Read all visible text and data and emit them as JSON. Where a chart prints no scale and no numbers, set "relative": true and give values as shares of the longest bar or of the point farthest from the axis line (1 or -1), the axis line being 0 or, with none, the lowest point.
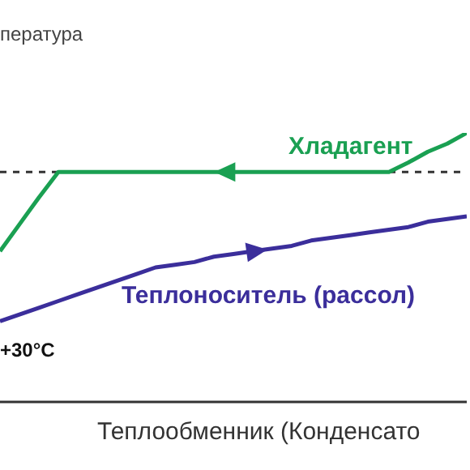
{
  "chart_data": {
    "type": "line",
    "relative": true,
    "ylabel": "пература",
    "xlabel": "Теплообменник (Конденсато",
    "legend": false,
    "marker": "none",
    "line_style": "solid",
    "categories": [
      null,
      null,
      null,
      null,
      null,
      null,
      null,
      null,
      null,
      null,
      null,
      null,
      null,
      null,
      null,
      null,
      null,
      null,
      null,
      null,
      null,
      null,
      null,
      null,
      null
    ],
    "series": [
      {
        "name": "Хладагент",
        "color": "#1aa052",
        "values": [
          0.56,
          0.66,
          0.76,
          0.855,
          0.855,
          0.855,
          0.855,
          0.855,
          0.855,
          0.855,
          0.855,
          0.855,
          0.855,
          0.855,
          0.855,
          0.855,
          0.855,
          0.855,
          0.855,
          0.855,
          0.855,
          0.89,
          0.93,
          0.96,
          1
        ]
      },
      {
        "name": "Теплоноситель (рассол)",
        "color": "#3b2e9b",
        "values": [
          0.3,
          0.325,
          0.35,
          0.375,
          0.4,
          0.425,
          0.45,
          0.475,
          0.5,
          0.51,
          0.52,
          0.54,
          0.55,
          0.56,
          0.57,
          0.58,
          0.6,
          0.61,
          0.62,
          0.63,
          0.64,
          0.65,
          0.67,
          0.68,
          0.69
        ]
      }
    ],
    "ref_lines": [
      {
        "axis": "y",
        "value": 0.855,
        "color": "#333333",
        "line_style": "dashed"
      }
    ],
    "annotations": [
      "+30°C"
    ]
  }
}
